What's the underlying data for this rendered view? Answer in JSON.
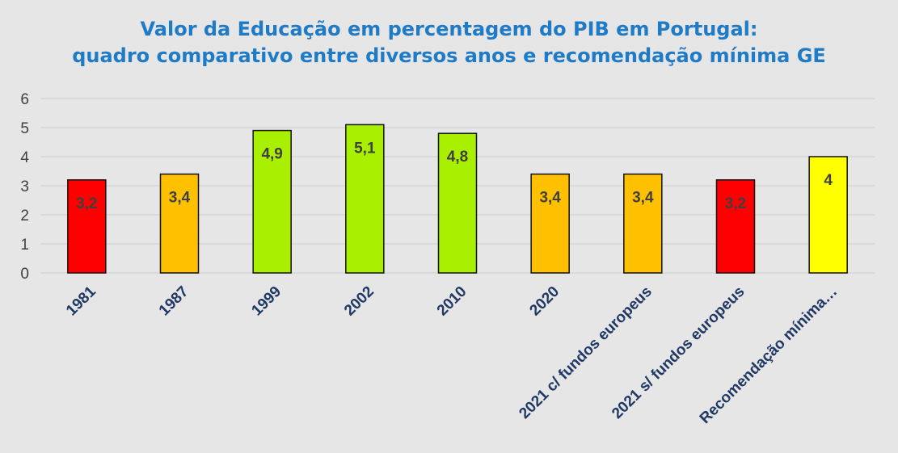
{
  "chart_data": {
    "type": "bar",
    "title_line1": "Valor da Educação em percentagem do PIB em Portugal:",
    "title_line2": "quadro comparativo entre diversos anos e recomendação mínima GE",
    "categories": [
      "1981",
      "1987",
      "1999",
      "2002",
      "2010",
      "2020",
      "2021 c/ fundos europeus",
      "2021 s/ fundos europeus",
      "Recomendação mínima…"
    ],
    "values": [
      3.2,
      3.4,
      4.9,
      5.1,
      4.8,
      3.4,
      3.4,
      3.2,
      4
    ],
    "data_labels": [
      "3,2",
      "3,4",
      "4,9",
      "5,1",
      "4,8",
      "3,4",
      "3,4",
      "3,2",
      "4"
    ],
    "bar_colors": [
      "#ff0000",
      "#ffc000",
      "#a8f000",
      "#a8f000",
      "#a8f000",
      "#ffc000",
      "#ffc000",
      "#ff0000",
      "#ffff00"
    ],
    "y_ticks": [
      "0",
      "1",
      "2",
      "3",
      "4",
      "5",
      "6"
    ],
    "ylim": [
      0,
      6
    ],
    "grid": true,
    "legend": "none",
    "xlabel": "",
    "ylabel": ""
  }
}
